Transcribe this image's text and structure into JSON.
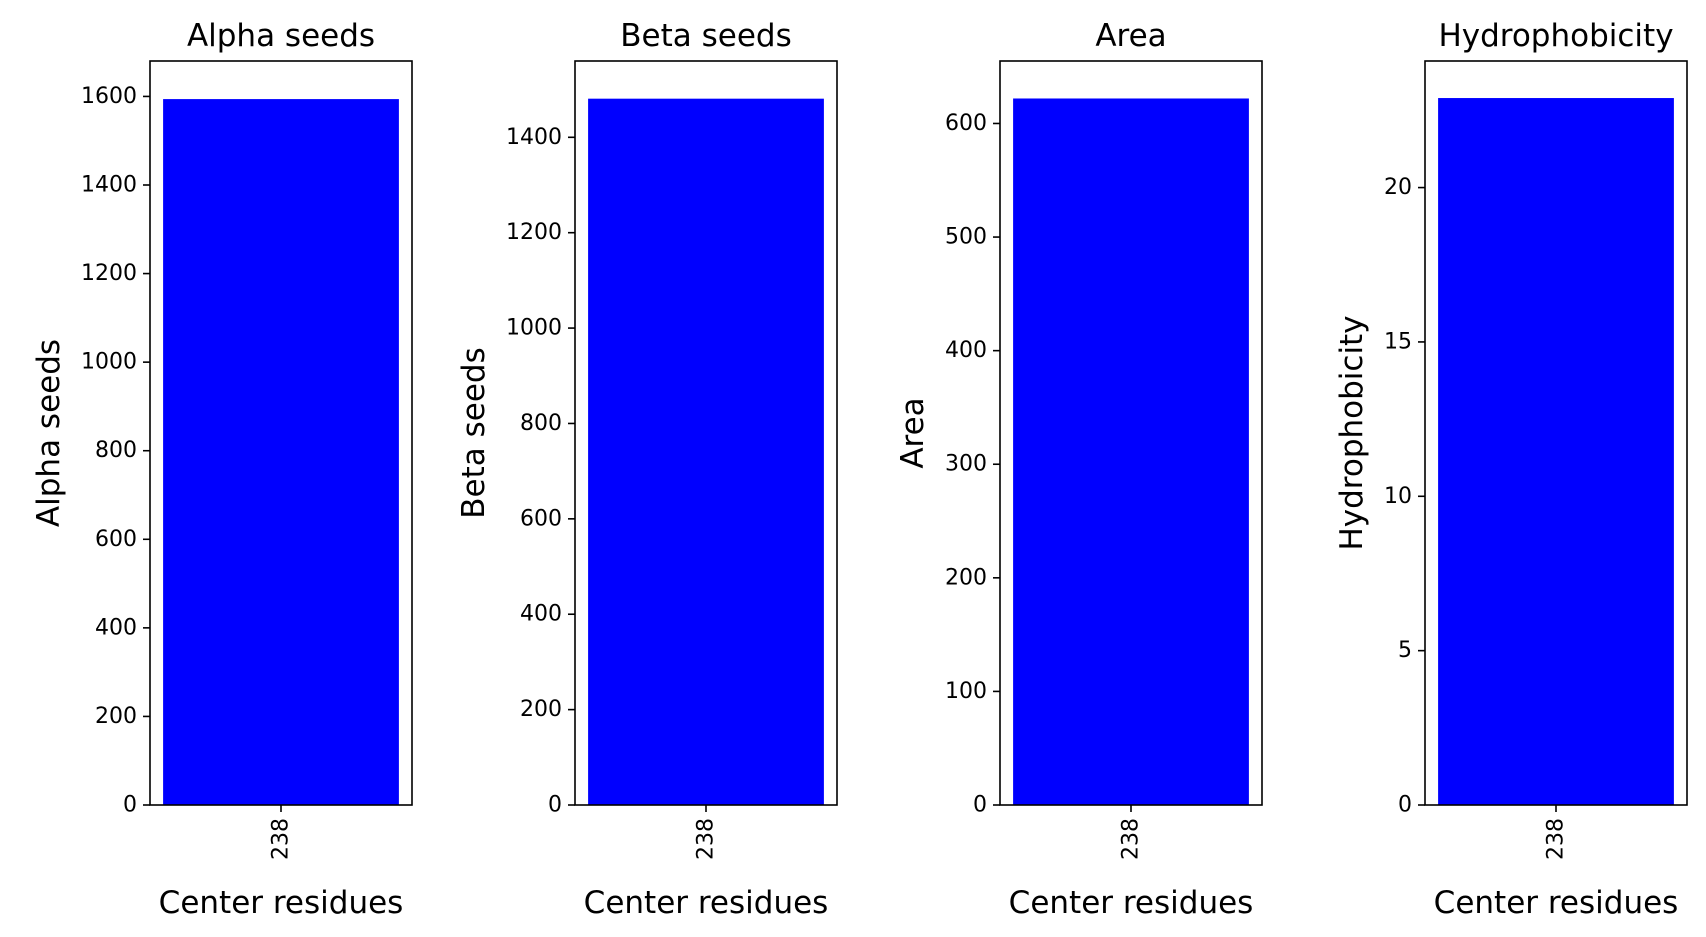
{
  "chart_data": [
    {
      "type": "bar",
      "title": "Alpha seeds",
      "xlabel": "Center residues",
      "ylabel": "Alpha seeds",
      "categories": [
        "238"
      ],
      "values": [
        1594
      ],
      "ylim": [
        0,
        1680
      ],
      "yticks": [
        0,
        200,
        400,
        600,
        800,
        1000,
        1200,
        1400,
        1600
      ],
      "bar_color": "#0000ff",
      "grid": false,
      "legend": false
    },
    {
      "type": "bar",
      "title": "Beta seeds",
      "xlabel": "Center residues",
      "ylabel": "Beta seeds",
      "categories": [
        "238"
      ],
      "values": [
        1481
      ],
      "ylim": [
        0,
        1560
      ],
      "yticks": [
        0,
        200,
        400,
        600,
        800,
        1000,
        1200,
        1400
      ],
      "bar_color": "#0000ff",
      "grid": false,
      "legend": false
    },
    {
      "type": "bar",
      "title": "Area",
      "xlabel": "Center residues",
      "ylabel": "Area",
      "categories": [
        "238"
      ],
      "values": [
        622
      ],
      "ylim": [
        0,
        655
      ],
      "yticks": [
        0,
        100,
        200,
        300,
        400,
        500,
        600
      ],
      "bar_color": "#0000ff",
      "grid": false,
      "legend": false
    },
    {
      "type": "bar",
      "title": "Hydrophobicity",
      "xlabel": "Center residues",
      "ylabel": "Hydrophobicity",
      "categories": [
        "238"
      ],
      "values": [
        22.9
      ],
      "ylim": [
        0,
        24.1
      ],
      "yticks": [
        0,
        5,
        10,
        15,
        20
      ],
      "bar_color": "#0000ff",
      "grid": false,
      "legend": false
    }
  ]
}
